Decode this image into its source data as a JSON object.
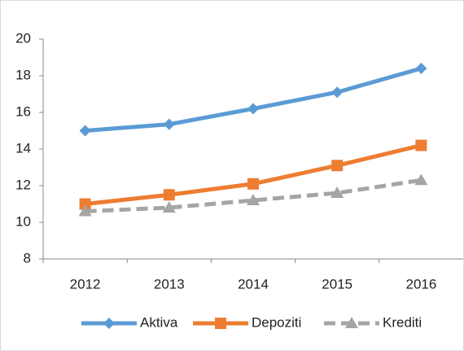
{
  "chart_data": {
    "type": "line",
    "categories": [
      "2012",
      "2013",
      "2014",
      "2015",
      "2016"
    ],
    "series": [
      {
        "name": "Aktiva",
        "color": "#5b9bd5",
        "marker": "diamond",
        "line_style": "solid",
        "values": [
          15.0,
          15.35,
          16.2,
          17.1,
          18.4
        ]
      },
      {
        "name": "Depoziti",
        "color": "#ed7d31",
        "marker": "square",
        "line_style": "solid",
        "values": [
          11.0,
          11.5,
          12.1,
          13.1,
          14.2
        ]
      },
      {
        "name": "Krediti",
        "color": "#a5a5a5",
        "marker": "triangle",
        "line_style": "dashed",
        "values": [
          10.6,
          10.8,
          11.2,
          11.6,
          12.3
        ]
      }
    ],
    "ylim": [
      8,
      20
    ],
    "yticks": [
      8,
      10,
      12,
      14,
      16,
      18,
      20
    ],
    "grid": false,
    "legend": "bottom"
  }
}
